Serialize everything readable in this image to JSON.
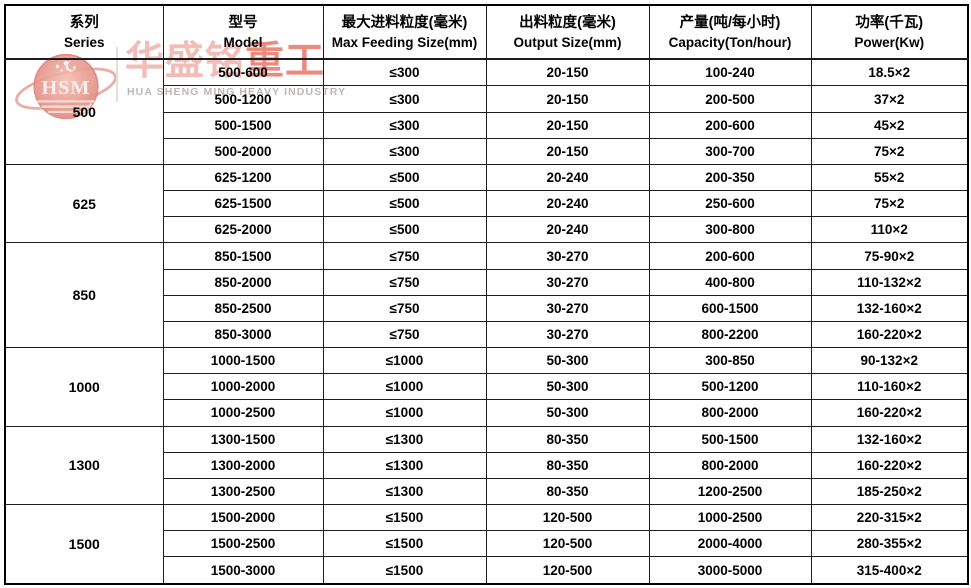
{
  "watermark": {
    "badge_text": "HSM",
    "company_cn_light": "华盛铭",
    "company_cn_accent": "重工",
    "company_en": "HUA SHENG MING HEAVY INDUSTRY"
  },
  "colors": {
    "table_border": "#000000",
    "table_text": "#000000",
    "watermark_light": "#f0b2aa",
    "watermark_accent": "#e77667",
    "watermark_en": "#baacac",
    "background": "#ffffff"
  },
  "table": {
    "columns": [
      {
        "cn": "系列",
        "en": "Series"
      },
      {
        "cn": "型号",
        "en": "Model"
      },
      {
        "cn": "最大进料粒度(毫米)",
        "en": "Max Feeding Size(mm)"
      },
      {
        "cn": "出料粒度(毫米)",
        "en": "Output Size(mm)"
      },
      {
        "cn": "产量(吨/每小时)",
        "en": "Capacity(Ton/hour)"
      },
      {
        "cn": "功率(千瓦)",
        "en": "Power(Kw)"
      }
    ],
    "groups": [
      {
        "series": "500",
        "rows": [
          [
            "500-600",
            "≤300",
            "20-150",
            "100-240",
            "18.5×2"
          ],
          [
            "500-1200",
            "≤300",
            "20-150",
            "200-500",
            "37×2"
          ],
          [
            "500-1500",
            "≤300",
            "20-150",
            "200-600",
            "45×2"
          ],
          [
            "500-2000",
            "≤300",
            "20-150",
            "300-700",
            "75×2"
          ]
        ]
      },
      {
        "series": "625",
        "rows": [
          [
            "625-1200",
            "≤500",
            "20-240",
            "200-350",
            "55×2"
          ],
          [
            "625-1500",
            "≤500",
            "20-240",
            "250-600",
            "75×2"
          ],
          [
            "625-2000",
            "≤500",
            "20-240",
            "300-800",
            "110×2"
          ]
        ]
      },
      {
        "series": "850",
        "rows": [
          [
            "850-1500",
            "≤750",
            "30-270",
            "200-600",
            "75-90×2"
          ],
          [
            "850-2000",
            "≤750",
            "30-270",
            "400-800",
            "110-132×2"
          ],
          [
            "850-2500",
            "≤750",
            "30-270",
            "600-1500",
            "132-160×2"
          ],
          [
            "850-3000",
            "≤750",
            "30-270",
            "800-2200",
            "160-220×2"
          ]
        ]
      },
      {
        "series": "1000",
        "rows": [
          [
            "1000-1500",
            "≤1000",
            "50-300",
            "300-850",
            "90-132×2"
          ],
          [
            "1000-2000",
            "≤1000",
            "50-300",
            "500-1200",
            "110-160×2"
          ],
          [
            "1000-2500",
            "≤1000",
            "50-300",
            "800-2000",
            "160-220×2"
          ]
        ]
      },
      {
        "series": "1300",
        "rows": [
          [
            "1300-1500",
            "≤1300",
            "80-350",
            "500-1500",
            "132-160×2"
          ],
          [
            "1300-2000",
            "≤1300",
            "80-350",
            "800-2000",
            "160-220×2"
          ],
          [
            "1300-2500",
            "≤1300",
            "80-350",
            "1200-2500",
            "185-250×2"
          ]
        ]
      },
      {
        "series": "1500",
        "rows": [
          [
            "1500-2000",
            "≤1500",
            "120-500",
            "1000-2500",
            "220-315×2"
          ],
          [
            "1500-2500",
            "≤1500",
            "120-500",
            "2000-4000",
            "280-355×2"
          ],
          [
            "1500-3000",
            "≤1500",
            "120-500",
            "3000-5000",
            "315-400×2"
          ]
        ]
      }
    ]
  }
}
